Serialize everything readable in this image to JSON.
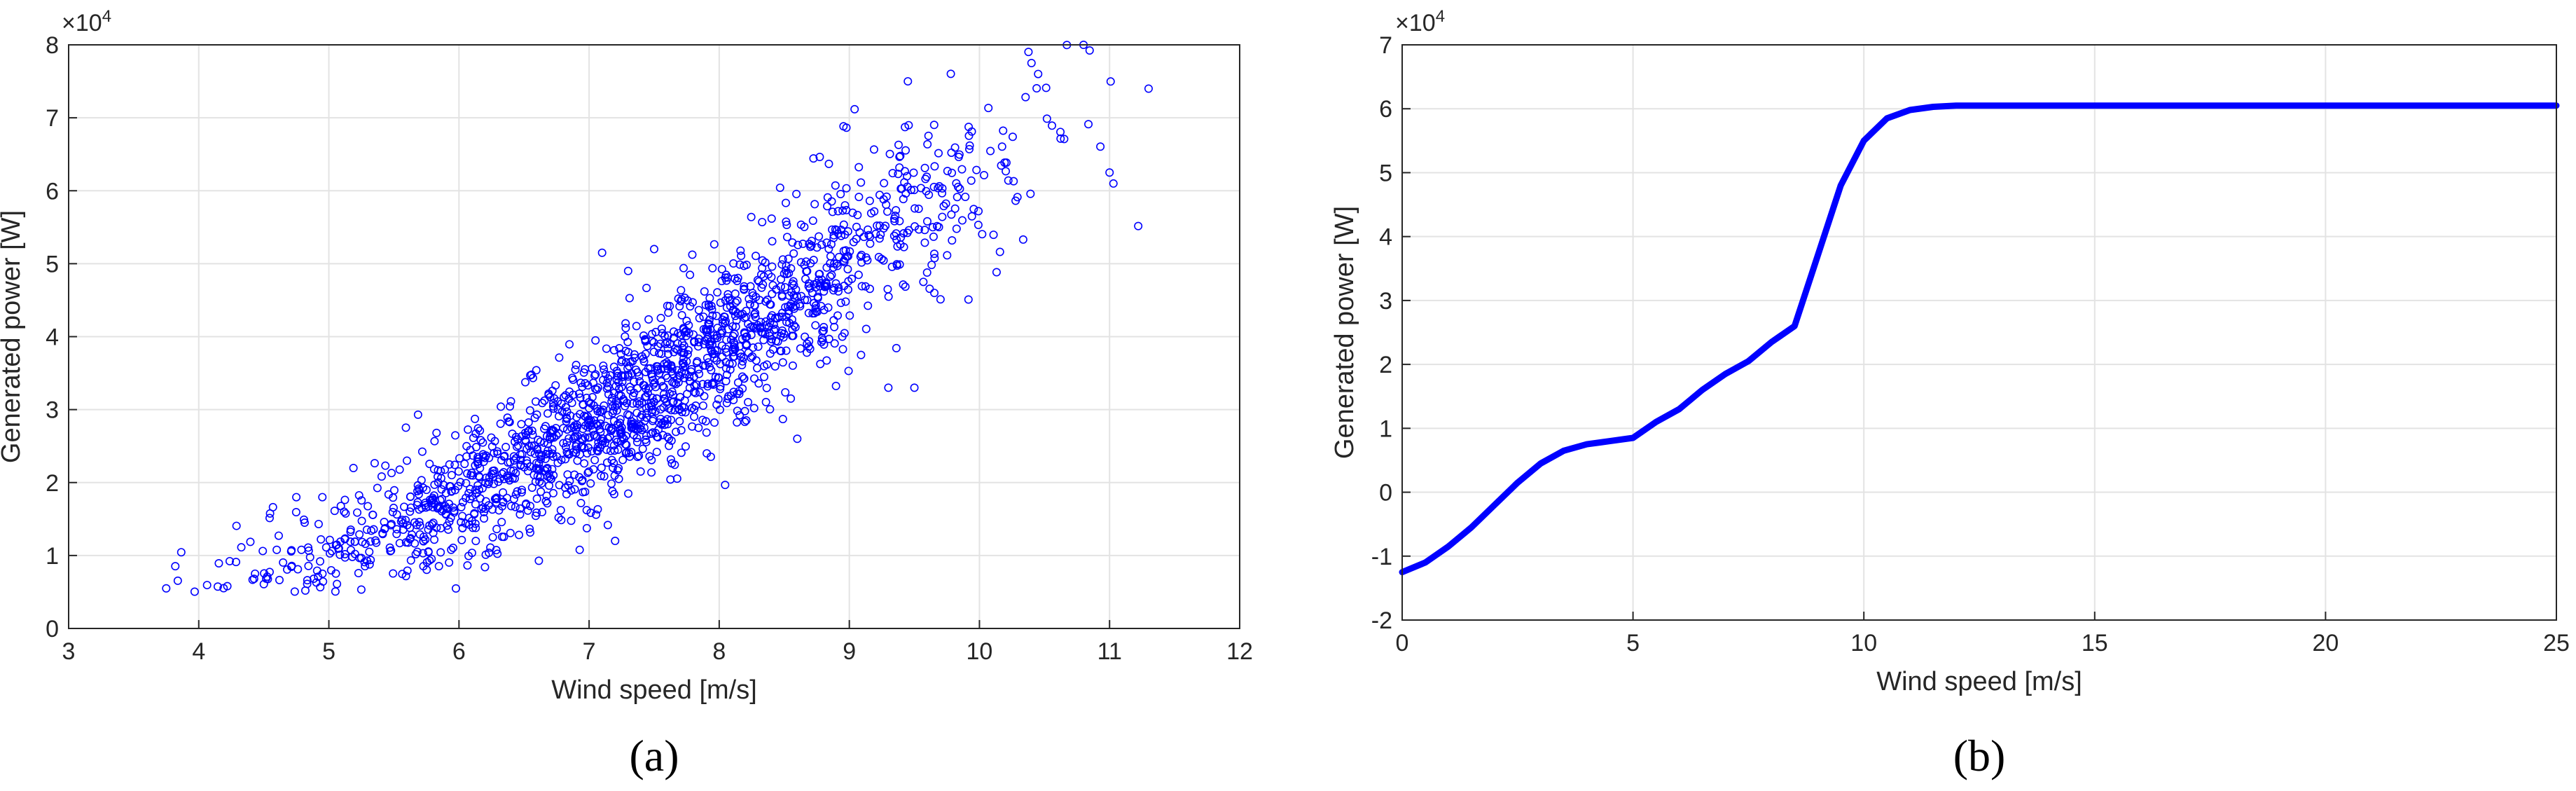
{
  "chart_data": [
    {
      "type": "scatter",
      "panel_label": "(a)",
      "xlabel": "Wind speed [m/s]",
      "ylabel": "Generated power [W]",
      "exponent_label": "×10^4",
      "exponent_base": "×10",
      "exponent_power": "4",
      "xlim": [
        3,
        12
      ],
      "ylim": [
        0,
        8
      ],
      "xticks": [
        "3",
        "4",
        "5",
        "6",
        "7",
        "8",
        "9",
        "10",
        "11",
        "12"
      ],
      "yticks": [
        "0",
        "1",
        "2",
        "3",
        "4",
        "5",
        "6",
        "7",
        "8"
      ],
      "grid": true,
      "marker": "circle-open",
      "color": "#0000ff",
      "y_scale_note": "y values in units of 10^4 W",
      "cloud": {
        "count": 1800,
        "x_range": [
          3.75,
          11.3
        ],
        "centerline": [
          [
            3.9,
            0.55
          ],
          [
            5,
            1.0
          ],
          [
            6,
            1.8
          ],
          [
            7,
            2.7
          ],
          [
            8,
            3.9
          ],
          [
            9,
            5.0
          ],
          [
            10,
            6.3
          ],
          [
            11,
            7.2
          ]
        ],
        "spread": 0.55
      },
      "points": [
        {
          "x": 3.75,
          "y": 0.55
        },
        {
          "x": 11.3,
          "y": 7.4
        },
        {
          "x": 10.8,
          "y": 8.0
        },
        {
          "x": 10.4,
          "y": 7.75
        },
        {
          "x": 11.0,
          "y": 6.25
        },
        {
          "x": 9.45,
          "y": 7.5
        },
        {
          "x": 9.5,
          "y": 3.3
        },
        {
          "x": 7.5,
          "y": 5.2
        },
        {
          "x": 7.3,
          "y": 4.9
        },
        {
          "x": 7.1,
          "y": 5.15
        },
        {
          "x": 4.75,
          "y": 1.8
        },
        {
          "x": 4.95,
          "y": 1.8
        },
        {
          "x": 5.6,
          "y": 2.3
        },
        {
          "x": 9.3,
          "y": 3.3
        },
        {
          "x": 8.6,
          "y": 2.6
        },
        {
          "x": 7.2,
          "y": 1.2
        }
      ]
    },
    {
      "type": "line",
      "panel_label": "(b)",
      "xlabel": "Wind speed [m/s]",
      "ylabel": "Generated power [W]",
      "exponent_label": "×10^4",
      "exponent_base": "×10",
      "exponent_power": "4",
      "xlim": [
        0,
        25
      ],
      "ylim": [
        -2,
        7
      ],
      "xticks": [
        "0",
        "5",
        "10",
        "15",
        "20",
        "25"
      ],
      "yticks": [
        "-2",
        "-1",
        "0",
        "1",
        "2",
        "3",
        "4",
        "5",
        "6",
        "7"
      ],
      "grid": true,
      "color": "#0000ff",
      "y_scale_note": "y values in units of 10^4 W",
      "x": [
        0,
        0.5,
        1,
        1.5,
        2,
        2.5,
        3,
        3.5,
        4,
        4.5,
        5,
        5.5,
        6,
        6.5,
        7,
        7.5,
        8,
        8.5,
        9,
        9.5,
        10,
        10.5,
        11,
        11.5,
        12,
        13,
        15,
        20,
        25
      ],
      "y": [
        -1.25,
        -1.1,
        -0.85,
        -0.55,
        -0.2,
        0.15,
        0.45,
        0.65,
        0.75,
        0.8,
        0.85,
        1.1,
        1.3,
        1.6,
        1.85,
        2.05,
        2.35,
        2.6,
        3.7,
        4.8,
        5.5,
        5.85,
        5.98,
        6.03,
        6.05,
        6.05,
        6.05,
        6.05,
        6.05
      ]
    }
  ]
}
